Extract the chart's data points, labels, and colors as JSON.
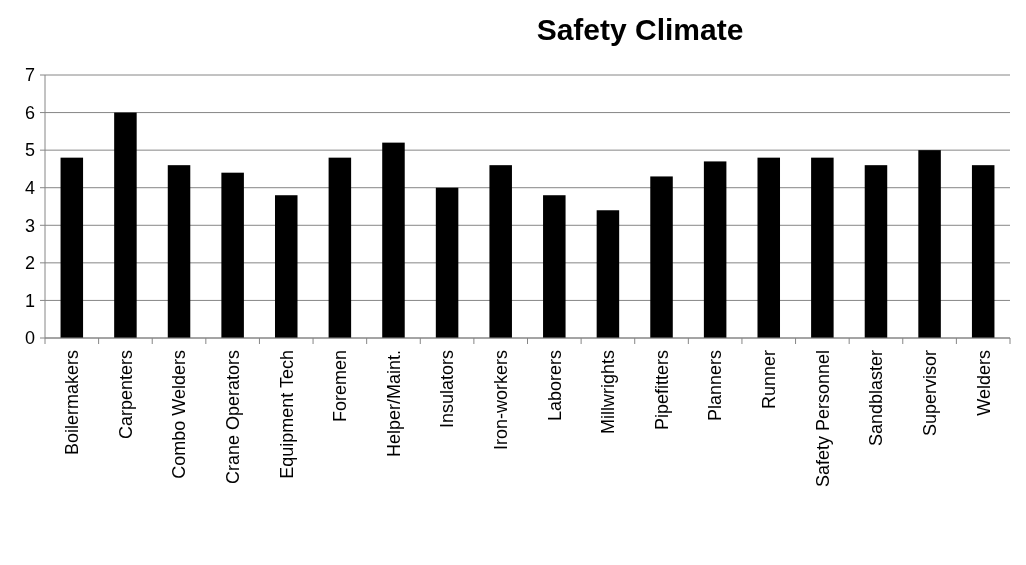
{
  "chart_data": {
    "type": "bar",
    "title": "Safety Climate",
    "categories": [
      "Boilermakers",
      "Carpenters",
      "Combo Welders",
      "Crane Operators",
      "Equipment Tech",
      "Foremen",
      "Helper/Maint.",
      "Insulators",
      "Iron-workers",
      "Laborers",
      "Millwrights",
      "Pipefitters",
      "Planners",
      "Runner",
      "Safety Personnel",
      "Sandblaster",
      "Supervisor",
      "Welders"
    ],
    "values": [
      4.8,
      6.0,
      4.6,
      4.4,
      3.8,
      4.8,
      5.2,
      4.0,
      4.6,
      3.8,
      3.4,
      4.3,
      4.7,
      4.8,
      4.8,
      4.6,
      5.0,
      4.6
    ],
    "color": "#000000",
    "ylim": [
      0,
      7
    ],
    "yticks": [
      0,
      1,
      2,
      3,
      4,
      5,
      6,
      7
    ],
    "grid": "y"
  }
}
